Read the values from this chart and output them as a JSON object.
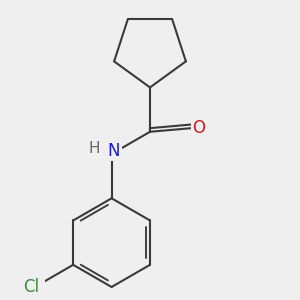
{
  "background_color": "#efefef",
  "bond_color": "#3a3a3a",
  "bond_width": 1.5,
  "atom_colors": {
    "N": "#1a1acc",
    "O": "#cc1a1a",
    "Cl": "#3a8c3a",
    "H": "#666666",
    "C": "#3a3a3a"
  },
  "font_size_heavy": 12,
  "font_size_H": 11
}
